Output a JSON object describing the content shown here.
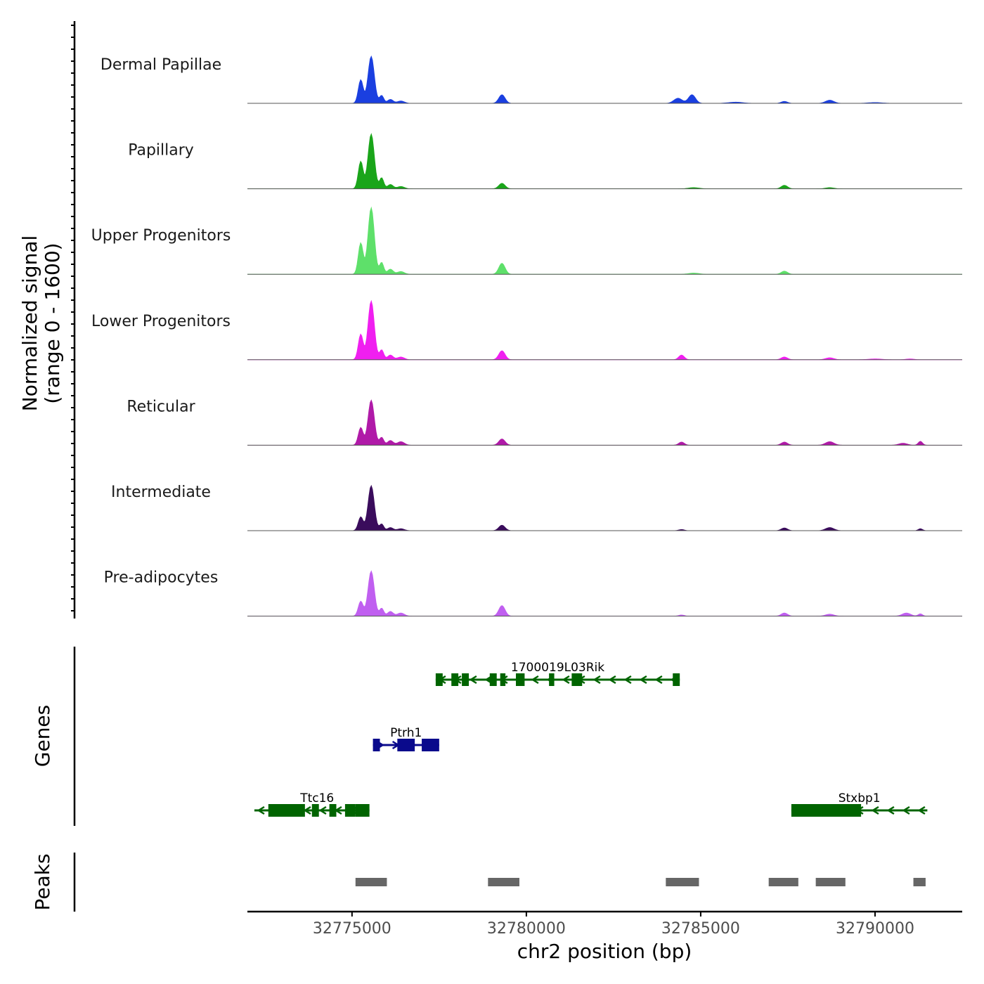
{
  "chart_data": {
    "type": "coverage-track",
    "region": {
      "chrom": "chr2",
      "start": 32772000,
      "end": 32792500
    },
    "xlabel": "chr2 position (bp)",
    "x_ticks": [
      32775000,
      32780000,
      32785000,
      32790000
    ],
    "x_tick_labels": [
      "32775000",
      "32780000",
      "32785000",
      "32790000"
    ],
    "ylabel_line1": "Normalized signal",
    "ylabel_line2": "(range 0 - 1600)",
    "y_range": [
      0,
      1600
    ],
    "tracks": [
      {
        "name": "Dermal Papillae",
        "color": "#1a3fe0",
        "peaks": [
          [
            32775250,
            600,
            70
          ],
          [
            32775550,
            1200,
            90
          ],
          [
            32775850,
            200,
            60
          ],
          [
            32776100,
            100,
            80
          ],
          [
            32776400,
            60,
            100
          ],
          [
            32779300,
            220,
            90
          ],
          [
            32784350,
            130,
            120
          ],
          [
            32784750,
            220,
            100
          ],
          [
            32786000,
            30,
            200
          ],
          [
            32787400,
            50,
            90
          ],
          [
            32788700,
            80,
            120
          ],
          [
            32790000,
            20,
            200
          ]
        ]
      },
      {
        "name": "Papillary",
        "color": "#1aa51a",
        "peaks": [
          [
            32775250,
            700,
            70
          ],
          [
            32775550,
            1400,
            90
          ],
          [
            32775850,
            280,
            60
          ],
          [
            32776100,
            110,
            80
          ],
          [
            32776400,
            60,
            100
          ],
          [
            32779300,
            140,
            90
          ],
          [
            32784800,
            30,
            150
          ],
          [
            32787400,
            90,
            90
          ],
          [
            32788700,
            30,
            120
          ]
        ]
      },
      {
        "name": "Upper Progenitors",
        "color": "#5ee06a",
        "peaks": [
          [
            32775250,
            800,
            70
          ],
          [
            32775550,
            1700,
            90
          ],
          [
            32775850,
            300,
            60
          ],
          [
            32776100,
            130,
            80
          ],
          [
            32776400,
            70,
            100
          ],
          [
            32779300,
            280,
            90
          ],
          [
            32784800,
            30,
            150
          ],
          [
            32787400,
            80,
            90
          ]
        ]
      },
      {
        "name": "Lower Progenitors",
        "color": "#f01ff0",
        "peaks": [
          [
            32775250,
            650,
            70
          ],
          [
            32775550,
            1500,
            90
          ],
          [
            32775850,
            250,
            60
          ],
          [
            32776100,
            120,
            80
          ],
          [
            32776400,
            70,
            100
          ],
          [
            32779300,
            230,
            90
          ],
          [
            32784450,
            120,
            80
          ],
          [
            32787400,
            70,
            90
          ],
          [
            32788700,
            50,
            120
          ],
          [
            32790000,
            20,
            200
          ],
          [
            32791000,
            20,
            120
          ]
        ]
      },
      {
        "name": "Reticular",
        "color": "#b01aa8",
        "peaks": [
          [
            32775250,
            450,
            70
          ],
          [
            32775550,
            1150,
            90
          ],
          [
            32775850,
            200,
            60
          ],
          [
            32776100,
            120,
            80
          ],
          [
            32776400,
            90,
            100
          ],
          [
            32779300,
            160,
            90
          ],
          [
            32784450,
            80,
            80
          ],
          [
            32787400,
            80,
            90
          ],
          [
            32788700,
            90,
            120
          ],
          [
            32790800,
            50,
            120
          ],
          [
            32791300,
            100,
            60
          ]
        ]
      },
      {
        "name": "Intermediate",
        "color": "#3a0c5c",
        "peaks": [
          [
            32775250,
            350,
            70
          ],
          [
            32775550,
            1150,
            90
          ],
          [
            32775850,
            170,
            60
          ],
          [
            32776100,
            80,
            80
          ],
          [
            32776400,
            50,
            100
          ],
          [
            32779300,
            140,
            90
          ],
          [
            32784450,
            30,
            80
          ],
          [
            32787400,
            70,
            90
          ],
          [
            32788700,
            80,
            120
          ],
          [
            32791300,
            50,
            60
          ]
        ]
      },
      {
        "name": "Pre-adipocytes",
        "color": "#c05ff0",
        "peaks": [
          [
            32775250,
            380,
            70
          ],
          [
            32775550,
            1150,
            90
          ],
          [
            32775850,
            200,
            60
          ],
          [
            32776100,
            120,
            80
          ],
          [
            32776400,
            80,
            100
          ],
          [
            32779300,
            270,
            90
          ],
          [
            32784450,
            30,
            80
          ],
          [
            32787400,
            80,
            90
          ],
          [
            32788700,
            50,
            120
          ],
          [
            32790900,
            80,
            120
          ],
          [
            32791300,
            60,
            60
          ]
        ]
      }
    ],
    "genes_label": "Genes",
    "genes": [
      {
        "name": "1700019L03Rik",
        "color": "#006400",
        "strand": "-",
        "start": 32777400,
        "end": 32784400,
        "row": 0,
        "exons": [
          [
            32777400,
            32777600
          ],
          [
            32777850,
            32778050
          ],
          [
            32778150,
            32778350
          ],
          [
            32778950,
            32779150
          ],
          [
            32779250,
            32779400
          ],
          [
            32779700,
            32779950
          ],
          [
            32780650,
            32780800
          ],
          [
            32781300,
            32781600
          ],
          [
            32784200,
            32784400
          ]
        ]
      },
      {
        "name": "Ptrh1",
        "color": "#0a0a8c",
        "strand": "+",
        "start": 32775600,
        "end": 32777500,
        "row": 1,
        "exons": [
          [
            32775600,
            32775800
          ],
          [
            32776300,
            32776800
          ],
          [
            32777000,
            32777500
          ]
        ]
      },
      {
        "name": "Ttc16",
        "color": "#006400",
        "strand": "-",
        "start": 32772200,
        "end": 32775500,
        "row": 2,
        "exons": [
          [
            32772600,
            32773650
          ],
          [
            32773850,
            32774050
          ],
          [
            32774350,
            32774550
          ],
          [
            32774800,
            32775100
          ],
          [
            32775100,
            32775500
          ]
        ]
      },
      {
        "name": "Stxbp1",
        "color": "#006400",
        "strand": "-",
        "start": 32787600,
        "end": 32791500,
        "row": 2,
        "exons": [
          [
            32787600,
            32789600
          ]
        ]
      }
    ],
    "peaks_label": "Peaks",
    "peak_regions": [
      [
        32775100,
        32776000
      ],
      [
        32778900,
        32779800
      ],
      [
        32784000,
        32784950
      ],
      [
        32786950,
        32787800
      ],
      [
        32788300,
        32789150
      ],
      [
        32791100,
        32791450
      ]
    ]
  }
}
